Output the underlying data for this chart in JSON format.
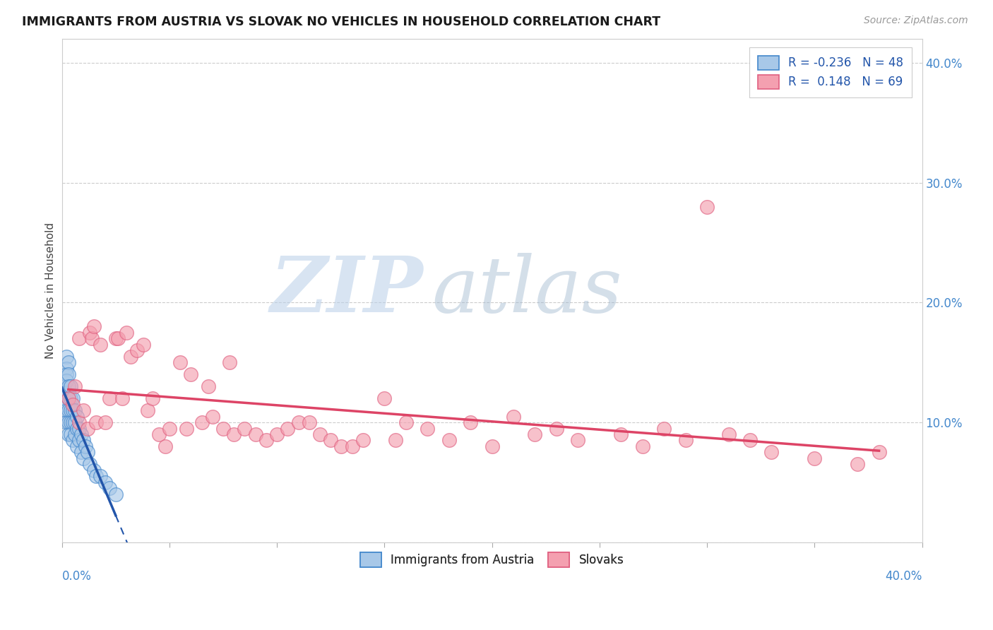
{
  "title": "IMMIGRANTS FROM AUSTRIA VS SLOVAK NO VEHICLES IN HOUSEHOLD CORRELATION CHART",
  "source": "Source: ZipAtlas.com",
  "ylabel": "No Vehicles in Household",
  "xlim": [
    0,
    0.4
  ],
  "ylim": [
    0,
    0.42
  ],
  "legend_blue_label": "Immigrants from Austria",
  "legend_pink_label": "Slovaks",
  "R_blue": -0.236,
  "N_blue": 48,
  "R_pink": 0.148,
  "N_pink": 69,
  "blue_fill": "#a8c8e8",
  "blue_edge": "#4488cc",
  "pink_fill": "#f4a0b0",
  "pink_edge": "#e06080",
  "blue_line_color": "#2255aa",
  "pink_line_color": "#dd4466",
  "blue_points_x": [
    0.001,
    0.001,
    0.001,
    0.001,
    0.002,
    0.002,
    0.002,
    0.002,
    0.002,
    0.002,
    0.002,
    0.003,
    0.003,
    0.003,
    0.003,
    0.003,
    0.003,
    0.003,
    0.004,
    0.004,
    0.004,
    0.004,
    0.004,
    0.005,
    0.005,
    0.005,
    0.005,
    0.006,
    0.006,
    0.006,
    0.007,
    0.007,
    0.007,
    0.008,
    0.008,
    0.009,
    0.009,
    0.01,
    0.01,
    0.011,
    0.012,
    0.013,
    0.015,
    0.016,
    0.018,
    0.02,
    0.022,
    0.025
  ],
  "blue_points_y": [
    0.13,
    0.125,
    0.12,
    0.115,
    0.155,
    0.145,
    0.14,
    0.135,
    0.125,
    0.11,
    0.1,
    0.15,
    0.14,
    0.13,
    0.12,
    0.11,
    0.1,
    0.09,
    0.13,
    0.12,
    0.11,
    0.1,
    0.09,
    0.12,
    0.11,
    0.1,
    0.085,
    0.11,
    0.1,
    0.09,
    0.105,
    0.095,
    0.08,
    0.095,
    0.085,
    0.09,
    0.075,
    0.085,
    0.07,
    0.08,
    0.075,
    0.065,
    0.06,
    0.055,
    0.055,
    0.05,
    0.045,
    0.04
  ],
  "pink_points_x": [
    0.003,
    0.005,
    0.006,
    0.008,
    0.008,
    0.01,
    0.012,
    0.013,
    0.014,
    0.015,
    0.016,
    0.018,
    0.02,
    0.022,
    0.025,
    0.026,
    0.028,
    0.03,
    0.032,
    0.035,
    0.038,
    0.04,
    0.042,
    0.045,
    0.048,
    0.05,
    0.055,
    0.058,
    0.06,
    0.065,
    0.068,
    0.07,
    0.075,
    0.078,
    0.08,
    0.085,
    0.09,
    0.095,
    0.1,
    0.105,
    0.11,
    0.115,
    0.12,
    0.125,
    0.13,
    0.135,
    0.14,
    0.15,
    0.155,
    0.16,
    0.17,
    0.18,
    0.19,
    0.2,
    0.21,
    0.22,
    0.23,
    0.24,
    0.26,
    0.27,
    0.28,
    0.29,
    0.3,
    0.31,
    0.32,
    0.33,
    0.35,
    0.37,
    0.38
  ],
  "pink_points_y": [
    0.12,
    0.115,
    0.13,
    0.17,
    0.1,
    0.11,
    0.095,
    0.175,
    0.17,
    0.18,
    0.1,
    0.165,
    0.1,
    0.12,
    0.17,
    0.17,
    0.12,
    0.175,
    0.155,
    0.16,
    0.165,
    0.11,
    0.12,
    0.09,
    0.08,
    0.095,
    0.15,
    0.095,
    0.14,
    0.1,
    0.13,
    0.105,
    0.095,
    0.15,
    0.09,
    0.095,
    0.09,
    0.085,
    0.09,
    0.095,
    0.1,
    0.1,
    0.09,
    0.085,
    0.08,
    0.08,
    0.085,
    0.12,
    0.085,
    0.1,
    0.095,
    0.085,
    0.1,
    0.08,
    0.105,
    0.09,
    0.095,
    0.085,
    0.09,
    0.08,
    0.095,
    0.085,
    0.28,
    0.09,
    0.085,
    0.075,
    0.07,
    0.065,
    0.075
  ],
  "blue_trend_x": [
    0.0,
    0.025
  ],
  "blue_trend_solid_end": 0.025,
  "blue_trend_dash_end": 0.38,
  "pink_trend_x": [
    0.003,
    0.38
  ]
}
